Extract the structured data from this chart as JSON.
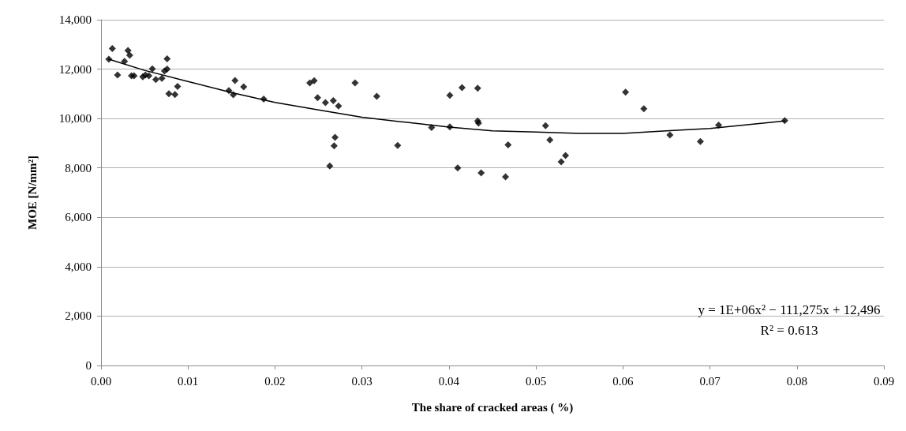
{
  "chart_data": {
    "type": "scatter",
    "xlabel": "The share of cracked areas ( %)",
    "ylabel": "MOE [N/mm²]",
    "marker": "diamond",
    "grid": "y",
    "xlim": [
      0,
      0.09
    ],
    "xticks": [
      {
        "value": 0,
        "label": "0.00"
      },
      {
        "value": 0.01,
        "label": "0.01"
      },
      {
        "value": 0.02,
        "label": "0.02"
      },
      {
        "value": 0.03,
        "label": "0.03"
      },
      {
        "value": 0.04,
        "label": "0.04"
      },
      {
        "value": 0.05,
        "label": "0.05"
      },
      {
        "value": 0.06,
        "label": "0.06"
      },
      {
        "value": 0.07,
        "label": "0.07"
      },
      {
        "value": 0.08,
        "label": "0.08"
      },
      {
        "value": 0.09,
        "label": "0.09"
      }
    ],
    "ylim": [
      0,
      14000
    ],
    "yticks": [
      0,
      {
        "value": 2000,
        "label": "2,000"
      },
      {
        "value": 4000,
        "label": "4,000"
      },
      {
        "value": 6000,
        "label": "6,000"
      },
      {
        "value": 8000,
        "label": "8,000"
      },
      {
        "value": 10000,
        "label": "10,000"
      },
      {
        "value": 12000,
        "label": "12,000"
      },
      {
        "value": 14000,
        "label": "14,000"
      }
    ],
    "annotations": [
      "y = 1E+06x² − 111,275x + 12,496",
      "R² = 0.613"
    ],
    "series": [
      {
        "color": "#000000",
        "x": [
          0.0009,
          0.0013,
          0.0019,
          0.0027,
          0.0031,
          0.0033,
          0.0035,
          0.0038,
          0.0048,
          0.0051,
          0.0055,
          0.0059,
          0.0063,
          0.007,
          0.0073,
          0.0076,
          0.0076,
          0.0078,
          0.0085,
          0.0088,
          0.0147,
          0.0152,
          0.0154,
          0.0164,
          0.0187,
          0.024,
          0.0245,
          0.0249,
          0.0258,
          0.0267,
          0.0273,
          0.0263,
          0.0268,
          0.0269,
          0.0292,
          0.0317,
          0.0341,
          0.038,
          0.0401,
          0.0401,
          0.041,
          0.0415,
          0.0433,
          0.0433,
          0.0434,
          0.0437,
          0.0465,
          0.0468,
          0.0511,
          0.0516,
          0.0529,
          0.0534,
          0.0603,
          0.0624,
          0.0654,
          0.0689,
          0.071,
          0.0786
        ],
        "values": [
          12400,
          12830,
          11760,
          12310,
          12750,
          12560,
          11730,
          11730,
          11690,
          11760,
          11730,
          12010,
          11580,
          11630,
          11920,
          12000,
          12420,
          11000,
          10970,
          11300,
          11130,
          10960,
          11540,
          11280,
          10790,
          11440,
          11530,
          10840,
          10640,
          10720,
          10510,
          8080,
          8890,
          9240,
          11440,
          10900,
          8910,
          9640,
          10940,
          9660,
          8000,
          11250,
          11230,
          9900,
          9810,
          7800,
          7640,
          8930,
          9710,
          9130,
          8250,
          8500,
          11070,
          10400,
          9330,
          9070,
          9730,
          9920
        ]
      },
      {
        "type": "line",
        "color": "#000000",
        "marker": "none",
        "x": [
          0.0009,
          0.005,
          0.01,
          0.015,
          0.02,
          0.025,
          0.03,
          0.035,
          0.04,
          0.045,
          0.05,
          0.055,
          0.06,
          0.065,
          0.07,
          0.0786
        ],
        "values": [
          12400,
          11950,
          11500,
          11050,
          10650,
          10350,
          10050,
          9850,
          9650,
          9500,
          9450,
          9400,
          9400,
          9500,
          9600,
          9900
        ]
      }
    ]
  }
}
